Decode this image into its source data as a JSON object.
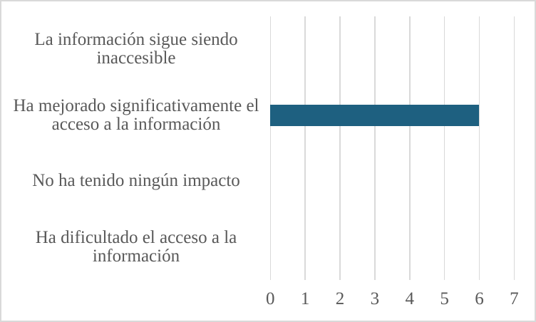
{
  "chart_data": {
    "type": "bar",
    "orientation": "horizontal",
    "title": "",
    "xlabel": "",
    "ylabel": "",
    "categories": [
      "La información sigue siendo inaccesible",
      "Ha mejorado significativamente el acceso a la información",
      "No ha tenido ningún impacto",
      "Ha dificultado el acceso a la información"
    ],
    "values": [
      0,
      6,
      0,
      0
    ],
    "xlim": [
      0,
      7
    ],
    "x_ticks": [
      "0",
      "1",
      "2",
      "3",
      "4",
      "5",
      "6",
      "7"
    ],
    "grid": "vertical-major-on",
    "legend": "none",
    "colors": {
      "bar": "#1e6080",
      "gridline": "#d9d9d9",
      "label_text": "#595959",
      "background": "#ffffff",
      "chart_border": "#d9d9d9"
    }
  }
}
